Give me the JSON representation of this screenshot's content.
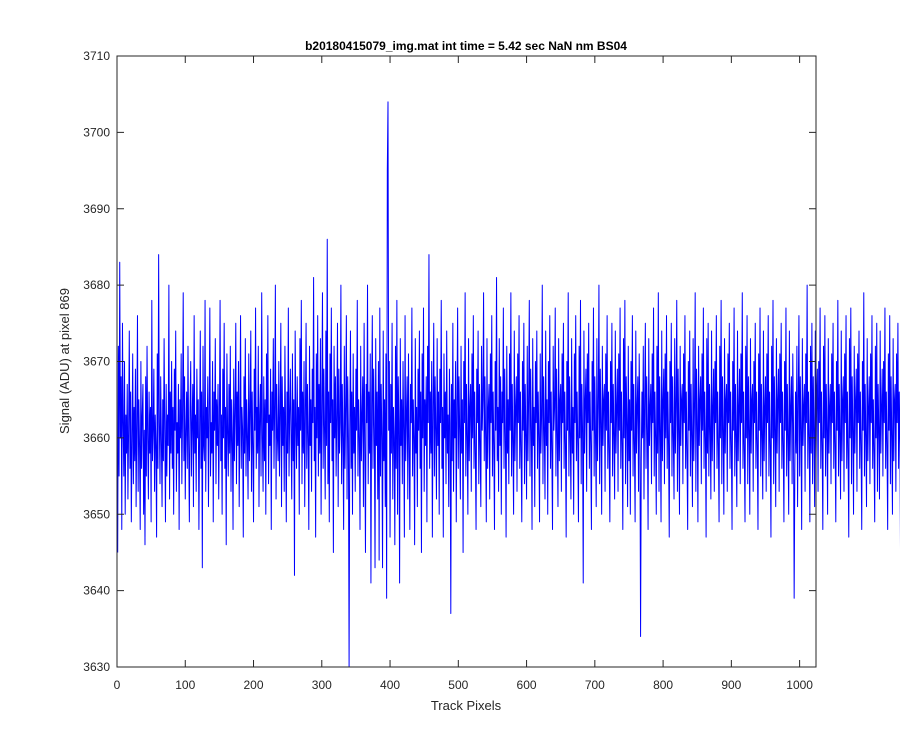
{
  "chart_data": {
    "type": "line",
    "title": "b20180415079_img.mat int time = 5.42 sec  NaN nm BS04",
    "xlabel": "Track Pixels",
    "ylabel": "Signal (ADU) at pixel 869",
    "xlim": [
      0,
      1024
    ],
    "ylim": [
      3630,
      3710
    ],
    "xticks": [
      0,
      100,
      200,
      300,
      400,
      500,
      600,
      700,
      800,
      900,
      1000
    ],
    "yticks": [
      3630,
      3640,
      3650,
      3660,
      3670,
      3680,
      3690,
      3700,
      3710
    ],
    "grid": false,
    "box": true,
    "series": [
      {
        "color": "#0000ff",
        "x_start": 1,
        "x_step": 1,
        "values": [
          3645,
          3672,
          3655,
          3683,
          3660,
          3668,
          3648,
          3675,
          3662,
          3655,
          3670,
          3650,
          3663,
          3658,
          3667,
          3652,
          3661,
          3674,
          3656,
          3666,
          3649,
          3660,
          3671,
          3654,
          3664,
          3657,
          3669,
          3651,
          3662,
          3676,
          3653,
          3665,
          3659,
          3648,
          3670,
          3656,
          3663,
          3667,
          3650,
          3661,
          3646,
          3668,
          3655,
          3672,
          3660,
          3652,
          3666,
          3658,
          3664,
          3649,
          3678,
          3657,
          3661,
          3669,
          3653,
          3663,
          3659,
          3647,
          3671,
          3656,
          3684,
          3662,
          3654,
          3668,
          3660,
          3651,
          3665,
          3657,
          3673,
          3661,
          3649,
          3667,
          3655,
          3663,
          3659,
          3680,
          3652,
          3666,
          3658,
          3670,
          3656,
          3664,
          3650,
          3669,
          3661,
          3674,
          3653,
          3662,
          3658,
          3667,
          3648,
          3665,
          3660,
          3671,
          3654,
          3663,
          3679,
          3657,
          3668,
          3652,
          3661,
          3666,
          3656,
          3672,
          3659,
          3649,
          3664,
          3670,
          3655,
          3662,
          3667,
          3651,
          3676,
          3658,
          3663,
          3653,
          3669,
          3660,
          3665,
          3648,
          3661,
          3674,
          3656,
          3666,
          3643,
          3672,
          3659,
          3657,
          3678,
          3653,
          3664,
          3660,
          3668,
          3651,
          3663,
          3677,
          3655,
          3662,
          3658,
          3670,
          3649,
          3666,
          3661,
          3673,
          3654,
          3665,
          3659,
          3667,
          3652,
          3662,
          3678,
          3657,
          3663,
          3650,
          3669,
          3660,
          3675,
          3656,
          3664,
          3646,
          3671,
          3661,
          3655,
          3667,
          3658,
          3672,
          3653,
          3665,
          3660,
          3648,
          3669,
          3657,
          3663,
          3675,
          3654,
          3666,
          3659,
          3670,
          3651,
          3662,
          3676,
          3656,
          3664,
          3661,
          3647,
          3668,
          3658,
          3673,
          3655,
          3665,
          3660,
          3652,
          3671,
          3657,
          3663,
          3674,
          3653,
          3666,
          3659,
          3649,
          3669,
          3661,
          3677,
          3656,
          3664,
          3658,
          3672,
          3651,
          3663,
          3667,
          3655,
          3679,
          3660,
          3653,
          3668,
          3657,
          3665,
          3650,
          3671,
          3662,
          3676,
          3654,
          3663,
          3659,
          3669,
          3648,
          3666,
          3661,
          3673,
          3656,
          3664,
          3680,
          3652,
          3667,
          3660,
          3657,
          3670,
          3655,
          3663,
          3675,
          3651,
          3668,
          3659,
          3664,
          3653,
          3672,
          3661,
          3649,
          3666,
          3658,
          3677,
          3655,
          3663,
          3669,
          3660,
          3652,
          3671,
          3657,
          3665,
          3642,
          3674,
          3662,
          3656,
          3668,
          3659,
          3664,
          3650,
          3673,
          3661,
          3678,
          3654,
          3666,
          3658,
          3670,
          3651,
          3663,
          3675,
          3656,
          3667,
          3660,
          3648,
          3672,
          3659,
          3665,
          3653,
          3669,
          3662,
          3681,
          3657,
          3664,
          3647,
          3671,
          3660,
          3676,
          3655,
          3667,
          3658,
          3673,
          3650,
          3664,
          3679,
          3656,
          3669,
          3661,
          3652,
          3674,
          3659,
          3686,
          3654,
          3666,
          3649,
          3671,
          3662,
          3677,
          3657,
          3665,
          3645,
          3672,
          3660,
          3668,
          3655,
          3663,
          3675,
          3651,
          3669,
          3658,
          3662,
          3680,
          3654,
          3667,
          3660,
          3648,
          3672,
          3656,
          3664,
          3676,
          3652,
          3668,
          3660,
          3630,
          3661,
          3674,
          3656,
          3666,
          3650,
          3671,
          3658,
          3664,
          3653,
          3669,
          3661,
          3678,
          3655,
          3665,
          3660,
          3648,
          3672,
          3657,
          3663,
          3668,
          3651,
          3675,
          3659,
          3645,
          3667,
          3662,
          3680,
          3654,
          3666,
          3658,
          3671,
          3641,
          3664,
          3676,
          3656,
          3669,
          3661,
          3643,
          3673,
          3659,
          3666,
          3652,
          3670,
          3644,
          3677,
          3655,
          3667,
          3660,
          3643,
          3674,
          3657,
          3665,
          3651,
          3671,
          3639,
          3695,
          3704,
          3661,
          3670,
          3647,
          3667,
          3658,
          3675,
          3652,
          3664,
          3660,
          3646,
          3672,
          3656,
          3678,
          3650,
          3668,
          3662,
          3641,
          3673,
          3659,
          3665,
          3654,
          3670,
          3661,
          3647,
          3676,
          3657,
          3663,
          3668,
          3652,
          3671,
          3659,
          3648,
          3667,
          3662,
          3677,
          3655,
          3665,
          3660,
          3646,
          3673,
          3658,
          3664,
          3651,
          3669,
          3661,
          3674,
          3656,
          3666,
          3645,
          3671,
          3660,
          3677,
          3653,
          3665,
          3659,
          3668,
          3649,
          3672,
          3662,
          3684,
          3656,
          3666,
          3658,
          3670,
          3647,
          3664,
          3675,
          3655,
          3668,
          3661,
          3652,
          3673,
          3659,
          3666,
          3650,
          3669,
          3662,
          3678,
          3656,
          3664,
          3647,
          3671,
          3660,
          3666,
          3654,
          3674,
          3658,
          3663,
          3651,
          3669,
          3662,
          3637,
          3667,
          3657,
          3675,
          3653,
          3665,
          3660,
          3670,
          3649,
          3664,
          3677,
          3656,
          3668,
          3661,
          3652,
          3672,
          3658,
          3665,
          3645,
          3670,
          3662,
          3679,
          3655,
          3667,
          3660,
          3650,
          3673,
          3657,
          3664,
          3667,
          3653,
          3671,
          3660,
          3676,
          3656,
          3666,
          3658,
          3648,
          3669,
          3662,
          3674,
          3654,
          3667,
          3659,
          3651,
          3672,
          3661,
          3665,
          3679,
          3657,
          3668,
          3660,
          3649,
          3673,
          3656,
          3664,
          3667,
          3652,
          3671,
          3662,
          3676,
          3655,
          3666,
          3659,
          3648,
          3670,
          3661,
          3681,
          3657,
          3664,
          3653,
          3673,
          3659,
          3668,
          3650,
          3666,
          3662,
          3677,
          3656,
          3669,
          3660,
          3647,
          3672,
          3658,
          3665,
          3654,
          3671,
          3661,
          3679,
          3655,
          3667,
          3659,
          3650,
          3674,
          3657,
          3664,
          3668,
          3653,
          3671,
          3662,
          3676,
          3656,
          3666,
          3658,
          3649,
          3670,
          3661,
          3675,
          3654,
          3667,
          3660,
          3652,
          3672,
          3657,
          3665,
          3678,
          3655,
          3669,
          3661,
          3648,
          3673,
          3659,
          3664,
          3651,
          3670,
          3662,
          3674,
          3656,
          3666,
          3660,
          3649,
          3671,
          3658,
          3663,
          3680,
          3654,
          3668,
          3661,
          3652,
          3674,
          3659,
          3665,
          3650,
          3670,
          3662,
          3676,
          3656,
          3666,
          3658,
          3648,
          3672,
          3661,
          3664,
          3677,
          3655,
          3669,
          3660,
          3651,
          3673,
          3657,
          3665,
          3667,
          3653,
          3671,
          3662,
          3675,
          3656,
          3666,
          3659,
          3647,
          3670,
          3661,
          3679,
          3655,
          3668,
          3660,
          3652,
          3673,
          3658,
          3664,
          3650,
          3671,
          3662,
          3676,
          3657,
          3666,
          3659,
          3649,
          3672,
          3660,
          3678,
          3654,
          3667,
          3661,
          3641,
          3674,
          3658,
          3665,
          3669,
          3653,
          3671,
          3662,
          3675,
          3656,
          3666,
          3659,
          3648,
          3670,
          3661,
          3677,
          3655,
          3668,
          3660,
          3651,
          3673,
          3657,
          3664,
          3680,
          3654,
          3669,
          3662,
          3650,
          3672,
          3659,
          3665,
          3667,
          3653,
          3671,
          3661,
          3676,
          3656,
          3666,
          3658,
          3649,
          3670,
          3662,
          3675,
          3655,
          3667,
          3660,
          3652,
          3674,
          3658,
          3664,
          3669,
          3653,
          3671,
          3661,
          3677,
          3656,
          3666,
          3659,
          3648,
          3673,
          3660,
          3678,
          3654,
          3668,
          3662,
          3651,
          3672,
          3657,
          3665,
          3650,
          3670,
          3661,
          3676,
          3655,
          3667,
          3659,
          3649,
          3674,
          3658,
          3664,
          3668,
          3653,
          3671,
          3662,
          3634,
          3657,
          3666,
          3660,
          3672,
          3652,
          3665,
          3675,
          3656,
          3668,
          3661,
          3648,
          3673,
          3659,
          3664,
          3667,
          3654,
          3671,
          3662,
          3677,
          3655,
          3666,
          3660,
          3650,
          3672,
          3658,
          3679,
          3653,
          3668,
          3661,
          3649,
          3674,
          3657,
          3665,
          3669,
          3654,
          3671,
          3660,
          3676,
          3656,
          3666,
          3659,
          3647,
          3670,
          3662,
          3675,
          3655,
          3668,
          3660,
          3652,
          3673,
          3658,
          3664,
          3678,
          3653,
          3669,
          3661,
          3650,
          3672,
          3659,
          3665,
          3667,
          3654,
          3671,
          3662,
          3676,
          3656,
          3666,
          3658,
          3648,
          3670,
          3661,
          3674,
          3655,
          3667,
          3660,
          3651,
          3673,
          3657,
          3664,
          3679,
          3653,
          3669,
          3662,
          3649,
          3672,
          3659,
          3665,
          3668,
          3654,
          3671,
          3661,
          3677,
          3656,
          3666,
          3660,
          3647,
          3673,
          3658,
          3675,
          3655,
          3667,
          3661,
          3652,
          3674,
          3657,
          3664,
          3669,
          3653,
          3670,
          3662,
          3676,
          3656,
          3666,
          3659,
          3649,
          3672,
          3660,
          3678,
          3654,
          3668,
          3661,
          3650,
          3673,
          3658,
          3665,
          3667,
          3653,
          3671,
          3662,
          3675,
          3656,
          3666,
          3659,
          3648,
          3670,
          3661,
          3677,
          3655,
          3667,
          3660,
          3651,
          3674,
          3657,
          3664,
          3669,
          3654,
          3671,
          3662,
          3679,
          3656,
          3666,
          3658,
          3649,
          3672,
          3660,
          3676,
          3654,
          3668,
          3661,
          3650,
          3673,
          3658,
          3665,
          3667,
          3653,
          3670,
          3662,
          3675,
          3656,
          3666,
          3659,
          3648,
          3671,
          3661,
          3677,
          3655,
          3667,
          3660,
          3652,
          3674,
          3657,
          3664,
          3668,
          3653,
          3671,
          3662,
          3676,
          3655,
          3666,
          3659,
          3647,
          3672,
          3660,
          3678,
          3654,
          3668,
          3661,
          3651,
          3673,
          3658,
          3665,
          3669,
          3653,
          3671,
          3662,
          3675,
          3656,
          3666,
          3659,
          3649,
          3670,
          3661,
          3677,
          3655,
          3667,
          3660,
          3650,
          3674,
          3657,
          3664,
          3668,
          3654,
          3671,
          3662,
          3639,
          3656,
          3666,
          3658,
          3672,
          3651,
          3665,
          3676,
          3655,
          3668,
          3661,
          3648,
          3673,
          3659,
          3664,
          3667,
          3653,
          3671,
          3662,
          3680,
          3656,
          3666,
          3660,
          3649,
          3672,
          3658,
          3675,
          3654,
          3668,
          3661,
          3651,
          3674,
          3657,
          3665,
          3669,
          3653,
          3670,
          3662,
          3677,
          3656,
          3666,
          3659,
          3648,
          3672,
          3660,
          3676,
          3655,
          3667,
          3661,
          3650,
          3673,
          3658,
          3664,
          3667,
          3654,
          3671,
          3662,
          3675,
          3656,
          3666,
          3659,
          3649,
          3670,
          3661,
          3678,
          3655,
          3667,
          3660,
          3652,
          3674,
          3657,
          3665,
          3668,
          3653,
          3671,
          3662,
          3676,
          3656,
          3666,
          3658,
          3647,
          3673,
          3660,
          3677,
          3654,
          3668,
          3661,
          3650,
          3672,
          3658,
          3665,
          3669,
          3653,
          3671,
          3662,
          3674,
          3656,
          3666,
          3659,
          3648,
          3670,
          3661,
          3679,
          3655,
          3667,
          3660,
          3651,
          3673,
          3657,
          3664,
          3668,
          3654,
          3671,
          3662,
          3676,
          3656,
          3665,
          3658,
          3649,
          3672,
          3660,
          3675,
          3653,
          3667,
          3661,
          3652,
          3674,
          3658,
          3664,
          3669,
          3655,
          3670,
          3662,
          3677,
          3656,
          3666,
          3659,
          3648,
          3671,
          3661,
          3676,
          3654,
          3668,
          3660,
          3650,
          3673,
          3657,
          3665,
          3667,
          3653,
          3671,
          3662,
          3675,
          3656,
          3666,
          3659,
          3642,
          3670,
          3652,
          3667,
          3645,
          3665
        ]
      }
    ]
  }
}
